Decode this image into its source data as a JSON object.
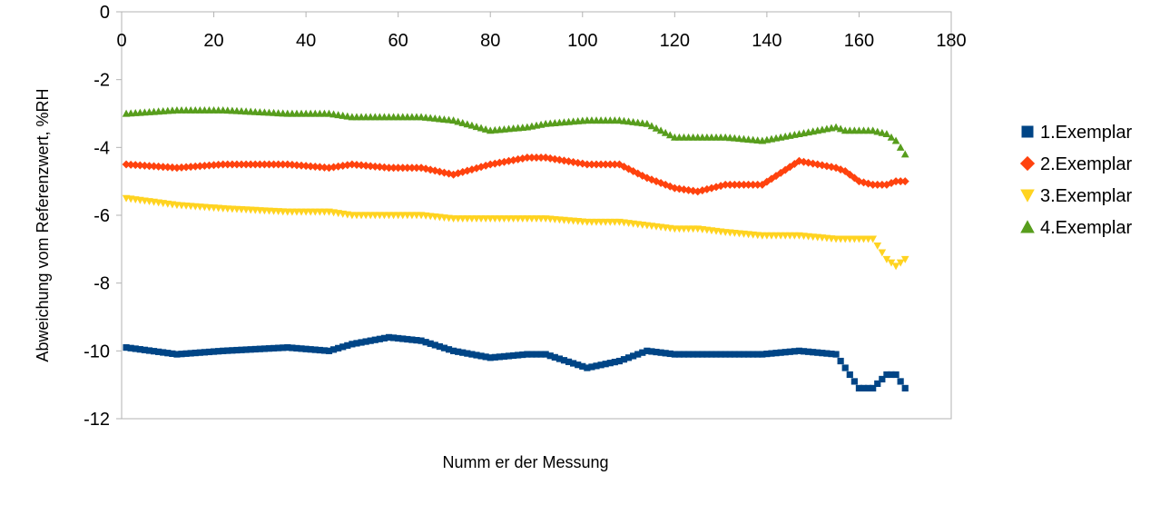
{
  "chart_data": {
    "type": "scatter",
    "title": "",
    "xlabel": "Numm er der Messung",
    "ylabel": "Abweichung vom Referenzwert, %RH",
    "xlim": [
      0,
      180
    ],
    "ylim": [
      -12,
      0
    ],
    "xticks": [
      0,
      20,
      40,
      60,
      80,
      100,
      120,
      140,
      160,
      180
    ],
    "yticks": [
      0,
      -2,
      -4,
      -6,
      -8,
      -10,
      -12
    ],
    "x_axis_position": "top",
    "grid": false,
    "legend": "right",
    "x": [
      1,
      12,
      22,
      36,
      45,
      50,
      58,
      65,
      72,
      80,
      88,
      92,
      101,
      108,
      114,
      120,
      125,
      131,
      139,
      147,
      155,
      157,
      160,
      163,
      166,
      168,
      170
    ],
    "series": [
      {
        "name": "1.Exemplar",
        "marker": "square",
        "color": "#004586",
        "values": [
          -9.9,
          -10.1,
          -10.0,
          -9.9,
          -10.0,
          -9.8,
          -9.6,
          -9.7,
          -10.0,
          -10.2,
          -10.1,
          -10.1,
          -10.5,
          -10.3,
          -10.0,
          -10.1,
          -10.1,
          -10.1,
          -10.1,
          -10.0,
          -10.1,
          -10.5,
          -11.1,
          -11.1,
          -10.7,
          -10.7,
          -11.1
        ]
      },
      {
        "name": "2.Exemplar",
        "marker": "diamond",
        "color": "#ff420e",
        "values": [
          -4.5,
          -4.6,
          -4.5,
          -4.5,
          -4.6,
          -4.5,
          -4.6,
          -4.6,
          -4.8,
          -4.5,
          -4.3,
          -4.3,
          -4.5,
          -4.5,
          -4.9,
          -5.2,
          -5.3,
          -5.1,
          -5.1,
          -4.4,
          -4.6,
          -4.7,
          -5.0,
          -5.1,
          -5.1,
          -5.0,
          -5.0
        ]
      },
      {
        "name": "3.Exemplar",
        "marker": "triangle-down",
        "color": "#ffd320",
        "values": [
          -5.5,
          -5.7,
          -5.8,
          -5.9,
          -5.9,
          -6.0,
          -6.0,
          -6.0,
          -6.1,
          -6.1,
          -6.1,
          -6.1,
          -6.2,
          -6.2,
          -6.3,
          -6.4,
          -6.4,
          -6.5,
          -6.6,
          -6.6,
          -6.7,
          -6.7,
          -6.7,
          -6.7,
          -7.3,
          -7.5,
          -7.3
        ]
      },
      {
        "name": "4.Exemplar",
        "marker": "triangle-up",
        "color": "#579d1c",
        "values": [
          -3.0,
          -2.9,
          -2.9,
          -3.0,
          -3.0,
          -3.1,
          -3.1,
          -3.1,
          -3.2,
          -3.5,
          -3.4,
          -3.3,
          -3.2,
          -3.2,
          -3.3,
          -3.7,
          -3.7,
          -3.7,
          -3.8,
          -3.6,
          -3.4,
          -3.5,
          -3.5,
          -3.5,
          -3.6,
          -3.8,
          -4.2
        ]
      }
    ]
  }
}
